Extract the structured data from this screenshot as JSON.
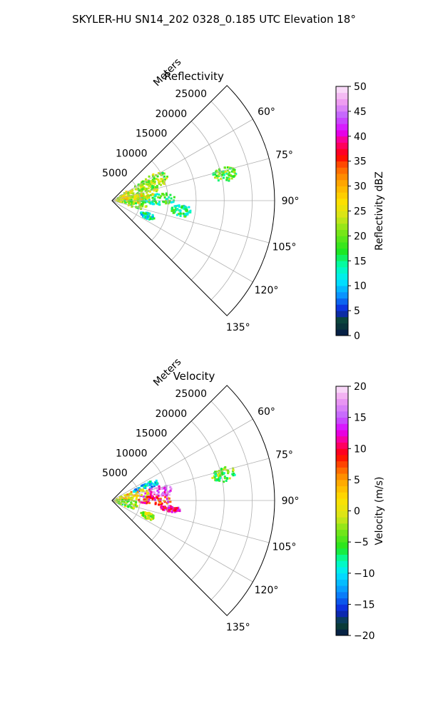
{
  "suptitle": "SKYLER-HU  SN14_202  0328_0.185 UTC Elevation 18°",
  "chart_data": [
    {
      "type": "heatmap",
      "subtype": "polar-sector",
      "title": "Reflectivity",
      "range_axis_label": "Meters",
      "range_ticks": [
        5000,
        10000,
        15000,
        20000,
        25000
      ],
      "range_max": 29000,
      "angle_ticks": [
        60,
        75,
        90,
        105,
        120,
        135
      ],
      "angle_tick_labels": [
        "60°",
        "75°",
        "90°",
        "105°",
        "120°",
        "135°"
      ],
      "angle_range_deg": [
        45,
        135
      ],
      "grid": true,
      "colorbar": {
        "label": "Reflectivity dBZ",
        "min": 0,
        "max": 50,
        "ticks": [
          0,
          5,
          10,
          15,
          20,
          25,
          30,
          35,
          40,
          45,
          50
        ],
        "ticklabels": [
          "0",
          "5",
          "10",
          "15",
          "20",
          "25",
          "30",
          "35",
          "40",
          "45",
          "50"
        ],
        "stops": [
          {
            "v": 0,
            "c": "#06174b"
          },
          {
            "v": 3,
            "c": "#0b4732"
          },
          {
            "v": 5,
            "c": "#0c1fd8"
          },
          {
            "v": 8,
            "c": "#0a8fff"
          },
          {
            "v": 11,
            "c": "#00e8ff"
          },
          {
            "v": 14,
            "c": "#00ffb3"
          },
          {
            "v": 17,
            "c": "#1ee61e"
          },
          {
            "v": 21,
            "c": "#7fe619"
          },
          {
            "v": 24,
            "c": "#d6e619"
          },
          {
            "v": 27,
            "c": "#ffe000"
          },
          {
            "v": 31,
            "c": "#ffa000"
          },
          {
            "v": 34,
            "c": "#ff5a00"
          },
          {
            "v": 36,
            "c": "#ff0000"
          },
          {
            "v": 39,
            "c": "#ff0080"
          },
          {
            "v": 41,
            "c": "#e000ff"
          },
          {
            "v": 44,
            "c": "#c060ff"
          },
          {
            "v": 47,
            "c": "#f0a0f0"
          },
          {
            "v": 50,
            "c": "#fbe8fb"
          }
        ]
      },
      "echo_regions": [
        {
          "az": 77,
          "r": 20500,
          "daz": 3.5,
          "dr": 2200,
          "value": 19
        },
        {
          "az": 72,
          "r": 4800,
          "daz": 16,
          "dr": 3800,
          "value": 24
        },
        {
          "az": 66,
          "r": 7800,
          "daz": 9,
          "dr": 3000,
          "value": 21
        },
        {
          "az": 88,
          "r": 8000,
          "daz": 7,
          "dr": 3500,
          "value": 16
        },
        {
          "az": 85,
          "r": 3500,
          "daz": 12,
          "dr": 3200,
          "value": 26
        },
        {
          "az": 98,
          "r": 3800,
          "daz": 10,
          "dr": 2600,
          "value": 21
        },
        {
          "az": 113,
          "r": 6900,
          "daz": 4.5,
          "dr": 1300,
          "value": 13
        },
        {
          "az": 98,
          "r": 12500,
          "daz": 5,
          "dr": 1800,
          "value": 15
        }
      ]
    },
    {
      "type": "heatmap",
      "subtype": "polar-sector",
      "title": "Velocity",
      "range_axis_label": "Meters",
      "range_ticks": [
        5000,
        10000,
        15000,
        20000,
        25000
      ],
      "range_max": 29000,
      "angle_ticks": [
        60,
        75,
        90,
        105,
        120,
        135
      ],
      "angle_tick_labels": [
        "60°",
        "75°",
        "90°",
        "105°",
        "120°",
        "135°"
      ],
      "angle_range_deg": [
        45,
        135
      ],
      "grid": true,
      "colorbar": {
        "label": "Velocity (m/s)",
        "min": -20,
        "max": 20,
        "ticks": [
          -20,
          -15,
          -10,
          -5,
          0,
          5,
          10,
          15,
          20
        ],
        "ticklabels": [
          "−20",
          "−15",
          "−10",
          "−5",
          "0",
          "5",
          "10",
          "15",
          "20"
        ],
        "stops": [
          {
            "v": -20,
            "c": "#06174b"
          },
          {
            "v": -18,
            "c": "#0b4732"
          },
          {
            "v": -16,
            "c": "#0c1fd8"
          },
          {
            "v": -13,
            "c": "#0a8fff"
          },
          {
            "v": -10,
            "c": "#00e8ff"
          },
          {
            "v": -8,
            "c": "#00ffb3"
          },
          {
            "v": -6,
            "c": "#1ee61e"
          },
          {
            "v": -3,
            "c": "#7fe619"
          },
          {
            "v": -1,
            "c": "#d6e619"
          },
          {
            "v": 2,
            "c": "#ffe000"
          },
          {
            "v": 5,
            "c": "#ffa000"
          },
          {
            "v": 7,
            "c": "#ff5a00"
          },
          {
            "v": 9,
            "c": "#ff0000"
          },
          {
            "v": 11,
            "c": "#ff0080"
          },
          {
            "v": 13,
            "c": "#e000ff"
          },
          {
            "v": 15,
            "c": "#c060ff"
          },
          {
            "v": 18,
            "c": "#f0a0f0"
          },
          {
            "v": 20,
            "c": "#fbe8fb"
          }
        ]
      },
      "echo_regions": [
        {
          "az": 77,
          "r": 20500,
          "daz": 3.5,
          "dr": 2200,
          "value": -4
        },
        {
          "az": 68,
          "r": 6500,
          "daz": 5,
          "dr": 2500,
          "value": -11
        },
        {
          "az": 80,
          "r": 8000,
          "daz": 7,
          "dr": 3000,
          "value": 15
        },
        {
          "az": 78,
          "r": 3500,
          "daz": 12,
          "dr": 3200,
          "value": 2
        },
        {
          "az": 90,
          "r": 7500,
          "daz": 6,
          "dr": 3000,
          "value": 9
        },
        {
          "az": 98,
          "r": 10500,
          "daz": 3,
          "dr": 1800,
          "value": 12
        },
        {
          "az": 100,
          "r": 2500,
          "daz": 14,
          "dr": 2500,
          "value": -3
        },
        {
          "az": 113,
          "r": 6900,
          "daz": 4.5,
          "dr": 1300,
          "value": -2
        }
      ]
    }
  ]
}
